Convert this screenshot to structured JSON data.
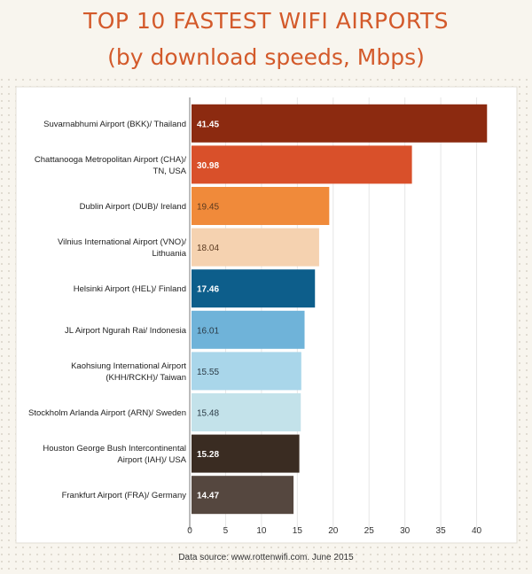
{
  "header": {
    "title": "TOP 10 FASTEST WIFI AIRPORTS",
    "subtitle": "(by download speeds, Mbps)"
  },
  "footer": {
    "source": "Data source: www.rottenwifi.com. June 2015"
  },
  "colors": {
    "title": "#d35a2b",
    "background": "#f8f5ee",
    "plot_background": "#ffffff"
  },
  "chart_data": {
    "type": "bar",
    "orientation": "horizontal",
    "categories": [
      "Suvarnabhumi Airport (BKK)/ Thailand",
      "Chattanooga Metropolitan Airport (CHA)/ TN, USA",
      "Dublin Airport (DUB)/ Ireland",
      "Vilnius International Airport (VNO)/ Lithuania",
      "Helsinki Airport (HEL)/ Finland",
      "JL Airport Ngurah Rai/ Indonesia",
      "Kaohsiung International Airport (KHH/RCKH)/ Taiwan",
      "Stockholm Arlanda Airport (ARN)/ Sweden",
      "Houston George Bush Intercontinental Airport (IAH)/ USA",
      "Frankfurt Airport (FRA)/ Germany"
    ],
    "category_lines": [
      [
        "Suvarnabhumi Airport (BKK)/ Thailand"
      ],
      [
        "Chattanooga Metropolitan Airport (CHA)/",
        "TN, USA"
      ],
      [
        "Dublin Airport (DUB)/ Ireland"
      ],
      [
        "Vilnius International Airport (VNO)/",
        "Lithuania"
      ],
      [
        "Helsinki Airport (HEL)/ Finland"
      ],
      [
        "JL Airport Ngurah Rai/ Indonesia"
      ],
      [
        "Kaohsiung International Airport",
        "(KHH/RCKH)/ Taiwan"
      ],
      [
        "Stockholm Arlanda Airport (ARN)/ Sweden"
      ],
      [
        "Houston George Bush Intercontinental",
        "Airport (IAH)/ USA"
      ],
      [
        "Frankfurt Airport (FRA)/ Germany"
      ]
    ],
    "values": [
      41.45,
      30.98,
      19.45,
      18.04,
      17.46,
      16.01,
      15.55,
      15.48,
      15.28,
      14.47
    ],
    "value_labels": [
      "41.45",
      "30.98",
      "19.45",
      "18.04",
      "17.46",
      "16.01",
      "15.55",
      "15.48",
      "15.28",
      "14.47"
    ],
    "bar_colors": [
      "#8c2a10",
      "#d9502a",
      "#f08a3a",
      "#f5d2b0",
      "#0d5e8b",
      "#6fb3d9",
      "#a9d6ea",
      "#c3e2ea",
      "#3a2c22",
      "#55473f"
    ],
    "label_colors": [
      "#ffffff",
      "#ffffff",
      "#5a3a20",
      "#5a3a20",
      "#ffffff",
      "#2a3a45",
      "#2a3a45",
      "#2a3a45",
      "#ffffff",
      "#ffffff"
    ],
    "label_bold": [
      true,
      true,
      false,
      false,
      true,
      false,
      false,
      false,
      true,
      true
    ],
    "xlim": [
      0,
      45
    ],
    "xticks": [
      0,
      5,
      10,
      15,
      20,
      25,
      30,
      35,
      40
    ],
    "grid": true,
    "legend": "none"
  }
}
